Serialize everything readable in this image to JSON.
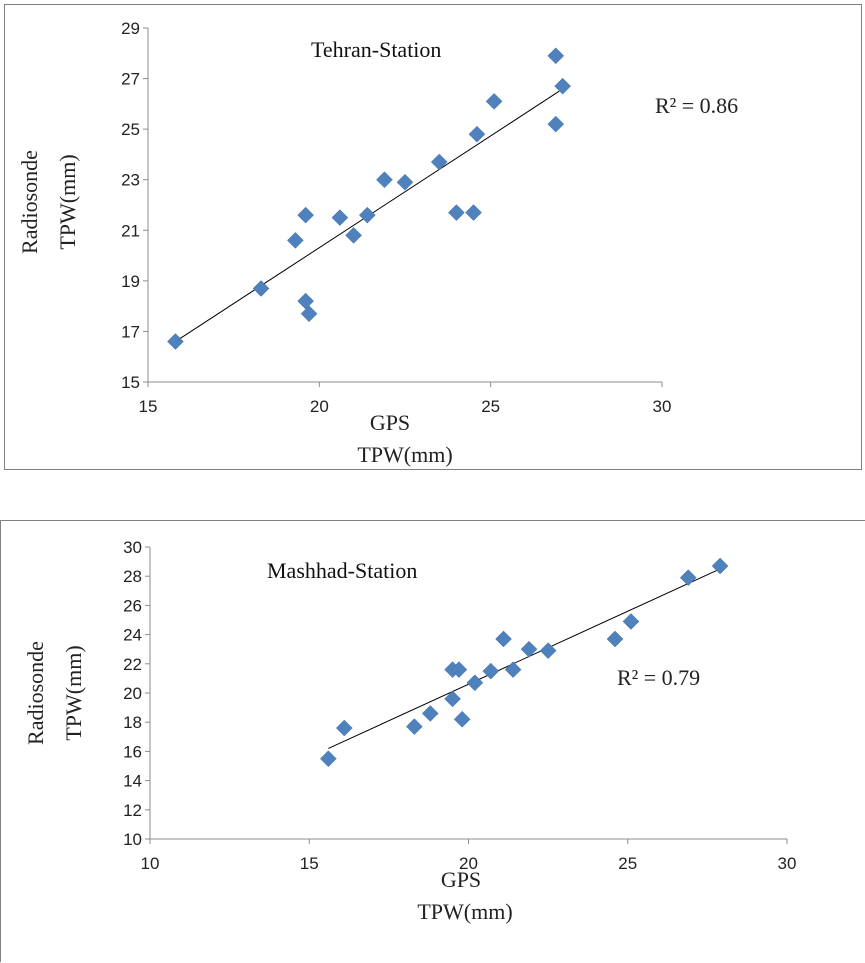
{
  "chart_data": [
    {
      "type": "scatter",
      "title": "Tehran-Station",
      "xlabel_lines": [
        "GPS",
        "TPW(mm)"
      ],
      "ylabel_lines": [
        "Radiosonde",
        "TPW(mm)"
      ],
      "xlim": [
        15,
        30
      ],
      "ylim": [
        15,
        29
      ],
      "xticks": [
        15,
        20,
        25,
        30
      ],
      "yticks": [
        15,
        17,
        19,
        21,
        23,
        25,
        27,
        29
      ],
      "annotation": "R² = 0.86",
      "marker_color": "#4f81bd",
      "trendline": {
        "x": [
          15.8,
          27.0
        ],
        "y": [
          16.6,
          26.5
        ]
      },
      "points": [
        {
          "x": 15.8,
          "y": 16.6
        },
        {
          "x": 18.3,
          "y": 18.7
        },
        {
          "x": 19.3,
          "y": 20.6
        },
        {
          "x": 19.6,
          "y": 21.6
        },
        {
          "x": 19.6,
          "y": 18.2
        },
        {
          "x": 19.7,
          "y": 17.7
        },
        {
          "x": 20.6,
          "y": 21.5
        },
        {
          "x": 21.0,
          "y": 20.8
        },
        {
          "x": 21.4,
          "y": 21.6
        },
        {
          "x": 21.9,
          "y": 23.0
        },
        {
          "x": 22.5,
          "y": 22.9
        },
        {
          "x": 23.5,
          "y": 23.7
        },
        {
          "x": 24.0,
          "y": 21.7
        },
        {
          "x": 24.5,
          "y": 21.7
        },
        {
          "x": 24.6,
          "y": 24.8
        },
        {
          "x": 25.1,
          "y": 26.1
        },
        {
          "x": 26.9,
          "y": 27.9
        },
        {
          "x": 26.9,
          "y": 25.2
        },
        {
          "x": 27.1,
          "y": 26.7
        }
      ]
    },
    {
      "type": "scatter",
      "title": "Mashhad-Station",
      "xlabel_lines": [
        "GPS",
        "TPW(mm)"
      ],
      "ylabel_lines": [
        "Radiosonde",
        "TPW(mm)"
      ],
      "xlim": [
        10,
        30
      ],
      "ylim": [
        10,
        30
      ],
      "xticks": [
        10,
        15,
        20,
        25,
        30
      ],
      "yticks": [
        10,
        12,
        14,
        16,
        18,
        20,
        22,
        24,
        26,
        28,
        30
      ],
      "annotation": "R² = 0.79",
      "marker_color": "#4f81bd",
      "trendline": {
        "x": [
          15.6,
          28.0
        ],
        "y": [
          16.2,
          28.6
        ]
      },
      "points": [
        {
          "x": 15.6,
          "y": 15.5
        },
        {
          "x": 16.1,
          "y": 17.6
        },
        {
          "x": 18.3,
          "y": 17.7
        },
        {
          "x": 18.8,
          "y": 18.6
        },
        {
          "x": 19.5,
          "y": 19.6
        },
        {
          "x": 19.5,
          "y": 21.6
        },
        {
          "x": 19.7,
          "y": 21.6
        },
        {
          "x": 19.8,
          "y": 18.2
        },
        {
          "x": 20.2,
          "y": 20.7
        },
        {
          "x": 20.7,
          "y": 21.5
        },
        {
          "x": 21.1,
          "y": 23.7
        },
        {
          "x": 21.4,
          "y": 21.6
        },
        {
          "x": 21.9,
          "y": 23.0
        },
        {
          "x": 22.5,
          "y": 22.9
        },
        {
          "x": 24.6,
          "y": 23.7
        },
        {
          "x": 25.1,
          "y": 24.9
        },
        {
          "x": 26.9,
          "y": 27.9
        },
        {
          "x": 27.9,
          "y": 28.7
        }
      ]
    }
  ]
}
